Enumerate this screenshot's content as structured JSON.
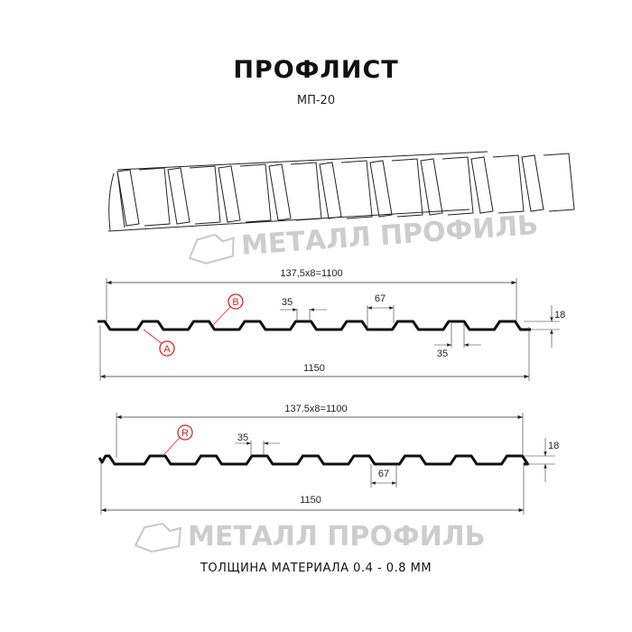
{
  "header": {
    "title": "ПРОФЛИСТ",
    "subtitle": "МП-20"
  },
  "watermark": "МЕТАЛЛ ПРОФИЛЬ",
  "profile_top": {
    "pitch_dim": "137,5x8=1100",
    "width_dim": "1150",
    "top_width": "35",
    "bottom_width_right": "35",
    "rib_dim": "67",
    "height_dim": "18",
    "marker_a": "A",
    "marker_b": "B"
  },
  "profile_bottom": {
    "pitch_dim": "137.5x8=1100",
    "width_dim": "1150",
    "top_width": "35",
    "rib_dim": "67",
    "height_dim": "18",
    "marker_r": "R"
  },
  "footer": {
    "thickness": "ТОЛЩИНА МАТЕРИАЛА 0.4 - 0.8 ММ"
  },
  "colors": {
    "marker": "#e02020",
    "line": "#111111",
    "watermark": "#bdbdbd"
  }
}
